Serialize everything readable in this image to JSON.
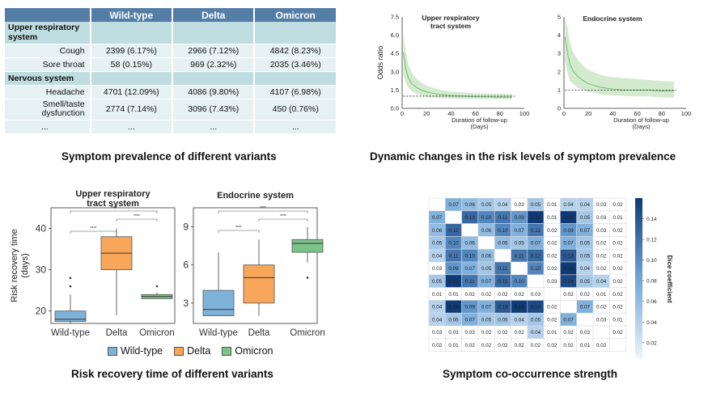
{
  "table": {
    "headers": [
      "",
      "Wild-type",
      "Delta",
      "Omicron"
    ],
    "rows": [
      {
        "kind": "cat",
        "cells": [
          "Upper respiratory system",
          "",
          "",
          ""
        ]
      },
      {
        "kind": "sym",
        "cells": [
          "Cough",
          "2399 (6.17%)",
          "2966  (7.12%)",
          "4842  (8.23%)"
        ]
      },
      {
        "kind": "sym",
        "cells": [
          "Sore throat",
          "58  (0.15%)",
          "969  (2.32%)",
          "2035  (3.46%)"
        ]
      },
      {
        "kind": "cat",
        "cells": [
          "Nervous system",
          "",
          "",
          ""
        ]
      },
      {
        "kind": "sym",
        "cells": [
          "Headache",
          "4701  (12.09%)",
          "4086  (9.80%)",
          "4107  (6.98%)"
        ]
      },
      {
        "kind": "sym",
        "cells": [
          "Smell/taste dysfunction",
          "2774  (7.14%)",
          "3096  (7.43%)",
          "450  (0.76%)"
        ]
      },
      {
        "kind": "sym",
        "cells": [
          "...",
          "...",
          "...",
          "..."
        ]
      }
    ]
  },
  "captions": {
    "top_left": "Symptom prevalence of different variants",
    "top_right": "Dynamic changes in the risk levels of symptom prevalence",
    "bottom_left": "Risk recovery time of different variants",
    "bottom_right": "Symptom co-occurrence strength"
  },
  "chart_data": [
    {
      "type": "line",
      "title": "Upper respiratory tract system",
      "xlabel": "Duration of follow-up (Days)",
      "ylabel": "Odds ratio",
      "xlim": [
        0,
        100
      ],
      "ylim": [
        0,
        7.5
      ],
      "xticks": [
        "0",
        "20",
        "40",
        "60",
        "80",
        "100"
      ],
      "yticks": [
        "0.0",
        "1.5",
        "3.0",
        "4.5",
        "6.0",
        "7.5"
      ],
      "reference_line": 1.0,
      "x": [
        1,
        3,
        5,
        8,
        12,
        16,
        20,
        25,
        30,
        35,
        40,
        50,
        60,
        70,
        80,
        90
      ],
      "values": [
        4.6,
        3.2,
        2.5,
        2.0,
        1.7,
        1.5,
        1.35,
        1.25,
        1.15,
        1.1,
        1.05,
        1.0,
        0.95,
        0.95,
        0.92,
        0.9
      ],
      "band_low": [
        2.8,
        2.1,
        1.7,
        1.4,
        1.2,
        1.05,
        0.95,
        0.9,
        0.85,
        0.82,
        0.8,
        0.78,
        0.77,
        0.76,
        0.75,
        0.74
      ],
      "band_high": [
        6.2,
        4.6,
        3.6,
        2.9,
        2.4,
        2.1,
        1.85,
        1.7,
        1.55,
        1.45,
        1.38,
        1.3,
        1.25,
        1.22,
        1.2,
        1.18
      ]
    },
    {
      "type": "line",
      "title": "Endocrine system",
      "xlabel": "Duration of follow-up (Days)",
      "ylabel": "",
      "xlim": [
        0,
        100
      ],
      "ylim": [
        0,
        5
      ],
      "xticks": [
        "0",
        "20",
        "40",
        "60",
        "80",
        "100"
      ],
      "yticks": [
        "0",
        "1",
        "2",
        "3",
        "4",
        "5"
      ],
      "reference_line": 1.0,
      "x": [
        1,
        3,
        5,
        8,
        12,
        16,
        20,
        25,
        30,
        35,
        40,
        50,
        60,
        70,
        80,
        90
      ],
      "values": [
        3.9,
        3.0,
        2.4,
        2.0,
        1.7,
        1.5,
        1.35,
        1.25,
        1.15,
        1.1,
        1.05,
        1.0,
        1.0,
        1.0,
        0.95,
        0.95
      ],
      "band_low": [
        2.5,
        1.9,
        1.5,
        1.3,
        1.1,
        1.0,
        0.9,
        0.85,
        0.75,
        0.72,
        0.7,
        0.68,
        0.66,
        0.65,
        0.6,
        0.58
      ],
      "band_high": [
        5.0,
        4.4,
        3.6,
        3.0,
        2.6,
        2.3,
        2.1,
        1.95,
        1.85,
        1.75,
        1.7,
        1.65,
        1.6,
        1.55,
        1.5,
        1.45
      ]
    },
    {
      "type": "box",
      "title": "Upper respiratory tract system",
      "ylabel": "Risk recovery time (days)",
      "categories": [
        "Wild-type",
        "Delta",
        "Omicron"
      ],
      "ylim": [
        17,
        45
      ],
      "yticks": [
        "20",
        "30",
        "40"
      ],
      "boxes": [
        {
          "min": 17,
          "q1": 17.5,
          "median": 18,
          "q3": 20,
          "max": 24,
          "outliers": [
            26,
            28
          ]
        },
        {
          "min": 19,
          "q1": 30,
          "median": 34,
          "q3": 38,
          "max": 40,
          "outliers": []
        },
        {
          "min": 23,
          "q1": 23,
          "median": 23.5,
          "q3": 24,
          "max": 24.5,
          "outliers": [
            26
          ]
        }
      ],
      "significance": [
        "****",
        "****",
        "****"
      ]
    },
    {
      "type": "box",
      "title": "Endocrine system",
      "ylabel": "",
      "categories": [
        "Wild-type",
        "Delta",
        "Omicron"
      ],
      "ylim": [
        1.4,
        10.5
      ],
      "yticks": [
        "3",
        "6",
        "9"
      ],
      "boxes": [
        {
          "min": 2,
          "q1": 2,
          "median": 2.5,
          "q3": 4,
          "max": 7,
          "outliers": []
        },
        {
          "min": 2,
          "q1": 3,
          "median": 5,
          "q3": 6,
          "max": 8,
          "outliers": []
        },
        {
          "min": 6.2,
          "q1": 7,
          "median": 7.7,
          "q3": 8,
          "max": 9,
          "outliers": [
            5
          ]
        }
      ],
      "significance": [
        "****",
        "****",
        "****"
      ]
    },
    {
      "type": "heatmap",
      "colorbar_label": "Dice coefficient",
      "colorbar_ticks": [
        "0.14",
        "0.12",
        "0.10",
        "0.08",
        "0.06",
        "0.04",
        "0.02"
      ],
      "vmin": 0.01,
      "vmax": 0.15,
      "matrix": [
        [
          "",
          "0.07",
          "0.06",
          "0.05",
          "0.04",
          "0.03",
          "0.05",
          "0.01",
          "0.04",
          "0.04",
          "0.03",
          "0.02"
        ],
        [
          "0.07",
          "",
          "0.12",
          "0.10",
          "0.11",
          "0.09",
          "0.16",
          "0.01",
          "0.15",
          "0.05",
          "0.03",
          "0.01"
        ],
        [
          "0.06",
          "0.12",
          "",
          "0.06",
          "0.10",
          "0.07",
          "0.11",
          "0.02",
          "0.09",
          "0.07",
          "0.03",
          "0.02"
        ],
        [
          "0.05",
          "0.10",
          "0.06",
          "",
          "0.06",
          "0.05",
          "0.07",
          "0.02",
          "0.07",
          "0.05",
          "0.02",
          "0.02"
        ],
        [
          "0.04",
          "0.11",
          "0.10",
          "0.06",
          "",
          "0.11",
          "0.12",
          "0.02",
          "0.13",
          "0.05",
          "0.02",
          "0.02"
        ],
        [
          "0.03",
          "0.09",
          "0.07",
          "0.05",
          "0.11",
          "",
          "0.10",
          "0.02",
          "0.15",
          "0.04",
          "0.02",
          "0.02"
        ],
        [
          "0.05",
          "0.16",
          "0.11",
          "0.07",
          "0.12",
          "0.10",
          "",
          "0.03",
          "0.14",
          "0.05",
          "0.04",
          "0.02"
        ],
        [
          "0.01",
          "0.01",
          "0.02",
          "0.02",
          "0.02",
          "0.02",
          "0.03",
          "",
          "0.02",
          "0.02",
          "0.01",
          "0.02"
        ],
        [
          "0.04",
          "0.15",
          "0.09",
          "0.07",
          "0.13",
          "0.15",
          "0.14",
          "0.02",
          "",
          "0.07",
          "0.02",
          "0.02"
        ],
        [
          "0.04",
          "0.05",
          "0.07",
          "0.05",
          "0.05",
          "0.04",
          "0.05",
          "0.02",
          "0.07",
          "",
          "0.03",
          "0.01"
        ],
        [
          "0.03",
          "0.03",
          "0.03",
          "0.02",
          "0.02",
          "0.02",
          "0.04",
          "0.01",
          "0.02",
          "0.03",
          "",
          "0.02"
        ],
        [
          "0.02",
          "0.01",
          "0.02",
          "0.02",
          "0.02",
          "0.02",
          "0.02",
          "0.02",
          "0.02",
          "0.01",
          "0.02",
          ""
        ]
      ]
    }
  ],
  "legend": {
    "items": [
      {
        "label": "Wild-type",
        "color": "#7fb2d9"
      },
      {
        "label": "Delta",
        "color": "#f7a65a"
      },
      {
        "label": "Omicron",
        "color": "#7cc38a"
      }
    ]
  },
  "colors": {
    "line": "#7fc27c",
    "band": "#cfe8c9",
    "table_header": "#547ea6",
    "table_category": "#bfdde0",
    "table_row": "#e6f1f3",
    "heat_low": "#eef4fb",
    "heat_high": "#0f3a78"
  }
}
